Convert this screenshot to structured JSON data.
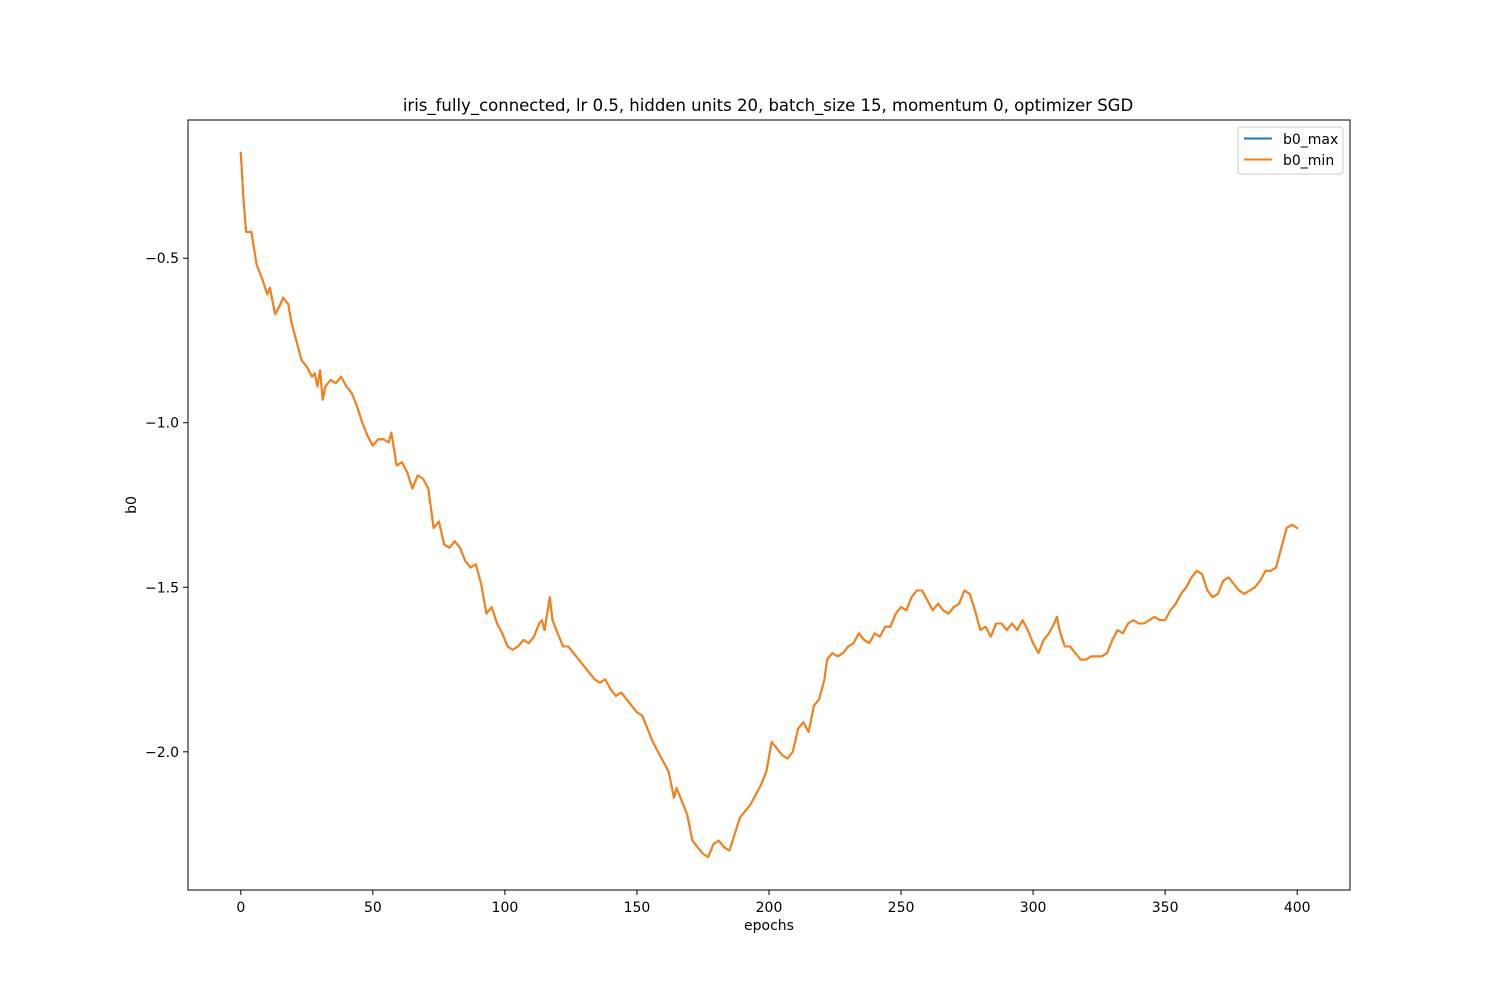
{
  "chart_data": {
    "type": "line",
    "title": "iris_fully_connected, lr 0.5, hidden units 20, batch_size 15, momentum 0, optimizer SGD",
    "xlabel": "epochs",
    "ylabel": "b0",
    "xlim": [
      -20,
      420
    ],
    "ylim": [
      -2.42,
      -0.08
    ],
    "xticks": [
      0,
      50,
      100,
      150,
      200,
      250,
      300,
      350,
      400
    ],
    "xtick_labels": [
      "0",
      "50",
      "100",
      "150",
      "200",
      "250",
      "300",
      "350",
      "400"
    ],
    "yticks": [
      -0.5,
      -1.0,
      -1.5,
      -2.0
    ],
    "ytick_labels": [
      "−0.5",
      "−1.0",
      "−1.5",
      "−2.0"
    ],
    "grid": false,
    "legend_position": "top-right",
    "x_step": 1,
    "keypoints": [
      [
        0,
        -0.18
      ],
      [
        1,
        -0.32
      ],
      [
        2,
        -0.42
      ],
      [
        4,
        -0.42
      ],
      [
        6,
        -0.52
      ],
      [
        8,
        -0.56
      ],
      [
        10,
        -0.61
      ],
      [
        11,
        -0.59
      ],
      [
        13,
        -0.67
      ],
      [
        15,
        -0.64
      ],
      [
        16,
        -0.62
      ],
      [
        18,
        -0.64
      ],
      [
        19,
        -0.69
      ],
      [
        21,
        -0.75
      ],
      [
        23,
        -0.81
      ],
      [
        25,
        -0.83
      ],
      [
        27,
        -0.86
      ],
      [
        28,
        -0.85
      ],
      [
        29,
        -0.89
      ],
      [
        30,
        -0.84
      ],
      [
        31,
        -0.93
      ],
      [
        32,
        -0.89
      ],
      [
        34,
        -0.87
      ],
      [
        36,
        -0.88
      ],
      [
        38,
        -0.86
      ],
      [
        40,
        -0.89
      ],
      [
        42,
        -0.91
      ],
      [
        44,
        -0.95
      ],
      [
        46,
        -1.0
      ],
      [
        48,
        -1.04
      ],
      [
        50,
        -1.07
      ],
      [
        52,
        -1.05
      ],
      [
        54,
        -1.05
      ],
      [
        56,
        -1.06
      ],
      [
        57,
        -1.03
      ],
      [
        58,
        -1.08
      ],
      [
        59,
        -1.13
      ],
      [
        61,
        -1.12
      ],
      [
        63,
        -1.15
      ],
      [
        65,
        -1.2
      ],
      [
        67,
        -1.16
      ],
      [
        69,
        -1.17
      ],
      [
        71,
        -1.2
      ],
      [
        73,
        -1.32
      ],
      [
        75,
        -1.3
      ],
      [
        77,
        -1.37
      ],
      [
        79,
        -1.38
      ],
      [
        81,
        -1.36
      ],
      [
        83,
        -1.38
      ],
      [
        85,
        -1.42
      ],
      [
        87,
        -1.44
      ],
      [
        89,
        -1.43
      ],
      [
        91,
        -1.49
      ],
      [
        93,
        -1.58
      ],
      [
        95,
        -1.56
      ],
      [
        97,
        -1.61
      ],
      [
        99,
        -1.64
      ],
      [
        101,
        -1.68
      ],
      [
        103,
        -1.69
      ],
      [
        105,
        -1.68
      ],
      [
        107,
        -1.66
      ],
      [
        109,
        -1.67
      ],
      [
        111,
        -1.65
      ],
      [
        113,
        -1.61
      ],
      [
        114,
        -1.6
      ],
      [
        115,
        -1.63
      ],
      [
        116,
        -1.58
      ],
      [
        117,
        -1.53
      ],
      [
        118,
        -1.6
      ],
      [
        120,
        -1.64
      ],
      [
        122,
        -1.68
      ],
      [
        124,
        -1.68
      ],
      [
        126,
        -1.7
      ],
      [
        128,
        -1.72
      ],
      [
        130,
        -1.74
      ],
      [
        132,
        -1.76
      ],
      [
        134,
        -1.78
      ],
      [
        136,
        -1.79
      ],
      [
        138,
        -1.78
      ],
      [
        140,
        -1.81
      ],
      [
        142,
        -1.83
      ],
      [
        144,
        -1.82
      ],
      [
        146,
        -1.84
      ],
      [
        148,
        -1.86
      ],
      [
        150,
        -1.88
      ],
      [
        152,
        -1.89
      ],
      [
        154,
        -1.93
      ],
      [
        156,
        -1.97
      ],
      [
        158,
        -2.0
      ],
      [
        160,
        -2.03
      ],
      [
        162,
        -2.06
      ],
      [
        163,
        -2.1
      ],
      [
        164,
        -2.14
      ],
      [
        165,
        -2.11
      ],
      [
        167,
        -2.15
      ],
      [
        169,
        -2.19
      ],
      [
        171,
        -2.27
      ],
      [
        173,
        -2.29
      ],
      [
        175,
        -2.31
      ],
      [
        177,
        -2.32
      ],
      [
        179,
        -2.28
      ],
      [
        181,
        -2.27
      ],
      [
        183,
        -2.29
      ],
      [
        185,
        -2.3
      ],
      [
        187,
        -2.25
      ],
      [
        189,
        -2.2
      ],
      [
        191,
        -2.18
      ],
      [
        193,
        -2.16
      ],
      [
        195,
        -2.13
      ],
      [
        197,
        -2.1
      ],
      [
        199,
        -2.06
      ],
      [
        201,
        -1.97
      ],
      [
        203,
        -1.99
      ],
      [
        205,
        -2.01
      ],
      [
        207,
        -2.02
      ],
      [
        209,
        -2.0
      ],
      [
        211,
        -1.93
      ],
      [
        213,
        -1.91
      ],
      [
        215,
        -1.94
      ],
      [
        216,
        -1.9
      ],
      [
        217,
        -1.86
      ],
      [
        219,
        -1.84
      ],
      [
        221,
        -1.78
      ],
      [
        222,
        -1.72
      ],
      [
        224,
        -1.7
      ],
      [
        226,
        -1.71
      ],
      [
        228,
        -1.7
      ],
      [
        230,
        -1.68
      ],
      [
        232,
        -1.67
      ],
      [
        234,
        -1.64
      ],
      [
        236,
        -1.66
      ],
      [
        238,
        -1.67
      ],
      [
        240,
        -1.64
      ],
      [
        242,
        -1.65
      ],
      [
        244,
        -1.62
      ],
      [
        246,
        -1.62
      ],
      [
        248,
        -1.58
      ],
      [
        250,
        -1.56
      ],
      [
        252,
        -1.57
      ],
      [
        254,
        -1.53
      ],
      [
        256,
        -1.51
      ],
      [
        258,
        -1.51
      ],
      [
        260,
        -1.54
      ],
      [
        262,
        -1.57
      ],
      [
        264,
        -1.55
      ],
      [
        266,
        -1.57
      ],
      [
        268,
        -1.58
      ],
      [
        270,
        -1.56
      ],
      [
        272,
        -1.55
      ],
      [
        274,
        -1.51
      ],
      [
        276,
        -1.52
      ],
      [
        278,
        -1.57
      ],
      [
        280,
        -1.63
      ],
      [
        282,
        -1.62
      ],
      [
        284,
        -1.65
      ],
      [
        286,
        -1.61
      ],
      [
        288,
        -1.61
      ],
      [
        290,
        -1.63
      ],
      [
        292,
        -1.61
      ],
      [
        294,
        -1.63
      ],
      [
        296,
        -1.6
      ],
      [
        298,
        -1.63
      ],
      [
        300,
        -1.67
      ],
      [
        302,
        -1.7
      ],
      [
        304,
        -1.66
      ],
      [
        306,
        -1.64
      ],
      [
        308,
        -1.61
      ],
      [
        309,
        -1.59
      ],
      [
        310,
        -1.63
      ],
      [
        312,
        -1.68
      ],
      [
        314,
        -1.68
      ],
      [
        316,
        -1.7
      ],
      [
        318,
        -1.72
      ],
      [
        320,
        -1.72
      ],
      [
        322,
        -1.71
      ],
      [
        324,
        -1.71
      ],
      [
        326,
        -1.71
      ],
      [
        328,
        -1.7
      ],
      [
        330,
        -1.66
      ],
      [
        332,
        -1.63
      ],
      [
        334,
        -1.64
      ],
      [
        336,
        -1.61
      ],
      [
        338,
        -1.6
      ],
      [
        340,
        -1.61
      ],
      [
        342,
        -1.61
      ],
      [
        344,
        -1.6
      ],
      [
        346,
        -1.59
      ],
      [
        348,
        -1.6
      ],
      [
        350,
        -1.6
      ],
      [
        352,
        -1.57
      ],
      [
        354,
        -1.55
      ],
      [
        356,
        -1.52
      ],
      [
        358,
        -1.5
      ],
      [
        360,
        -1.47
      ],
      [
        362,
        -1.45
      ],
      [
        364,
        -1.46
      ],
      [
        366,
        -1.51
      ],
      [
        368,
        -1.53
      ],
      [
        370,
        -1.52
      ],
      [
        372,
        -1.48
      ],
      [
        374,
        -1.47
      ],
      [
        376,
        -1.49
      ],
      [
        378,
        -1.51
      ],
      [
        380,
        -1.52
      ],
      [
        382,
        -1.51
      ],
      [
        384,
        -1.5
      ],
      [
        386,
        -1.48
      ],
      [
        388,
        -1.45
      ],
      [
        390,
        -1.45
      ],
      [
        392,
        -1.44
      ],
      [
        394,
        -1.38
      ],
      [
        396,
        -1.32
      ],
      [
        398,
        -1.31
      ],
      [
        400,
        -1.32
      ]
    ],
    "series": [
      {
        "name": "b0_max",
        "color": "#1f77b4"
      },
      {
        "name": "b0_min",
        "color": "#ff7f0e"
      }
    ]
  }
}
